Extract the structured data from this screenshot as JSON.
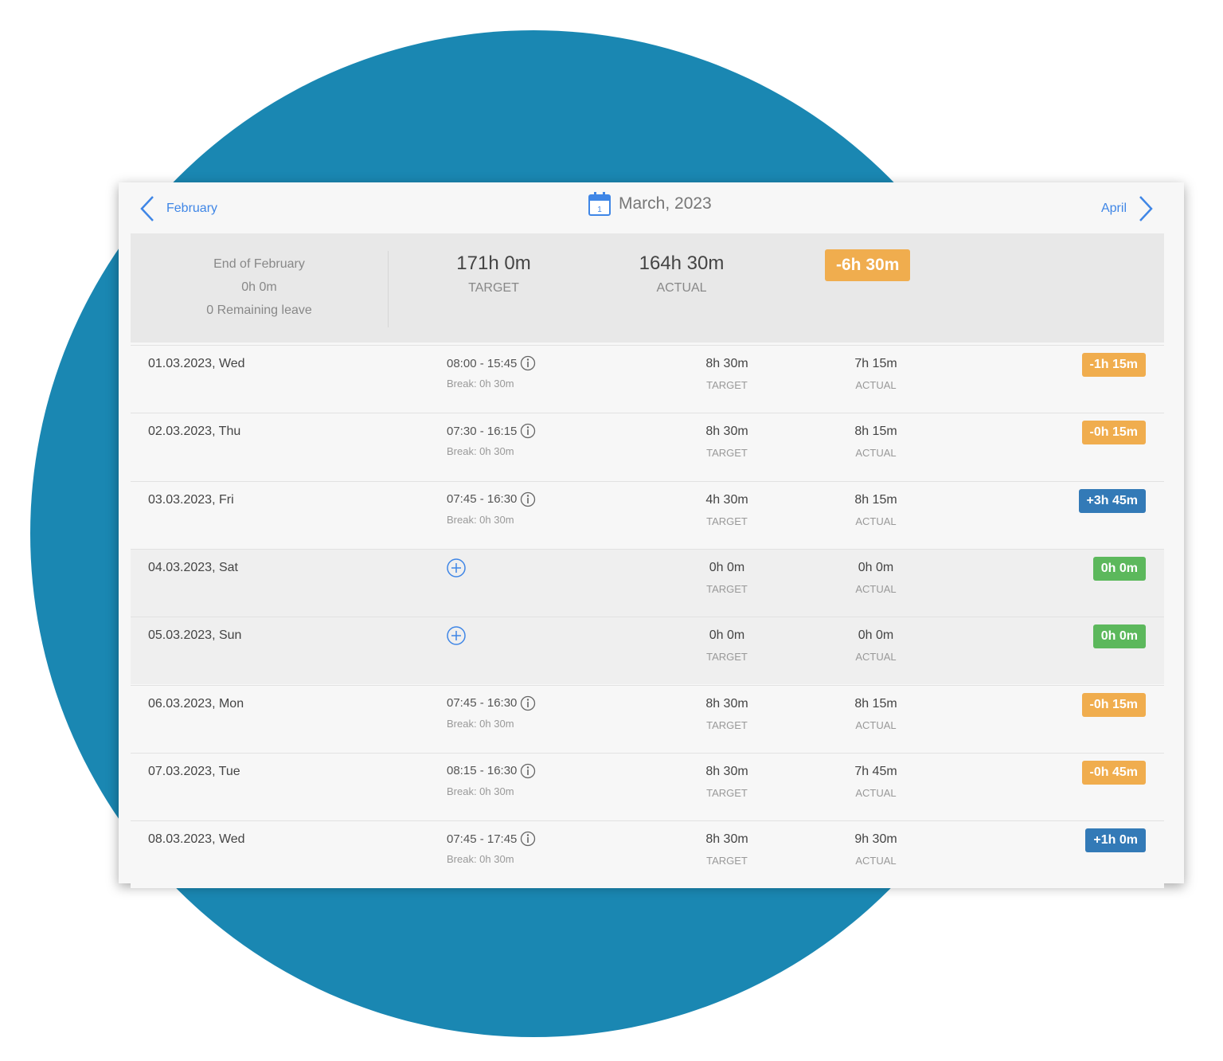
{
  "nav": {
    "prev_label": "February",
    "next_label": "April",
    "title": "March, 2023",
    "calendar_day": "1"
  },
  "summary": {
    "prev_title": "End of February",
    "prev_balance": "0h 0m",
    "remaining_leave": "0 Remaining leave",
    "target": "171h 0m",
    "target_label": "TARGET",
    "actual": "164h 30m",
    "actual_label": "ACTUAL",
    "difference": "-6h 30m",
    "difference_color": "#f0ad4e"
  },
  "colors": {
    "negative": "#f0ad4e",
    "positive": "#337ab7",
    "zero": "#5cb85c",
    "accent": "#3f86e6",
    "background_circle": "#1a87b2"
  },
  "rows": [
    {
      "date": "01.03.2023, Wed",
      "time": "08:00 - 15:45",
      "break": "Break: 0h 30m",
      "target": "8h 30m",
      "target_label": "TARGET",
      "actual": "7h 15m",
      "actual_label": "ACTUAL",
      "diff": "-1h 15m",
      "status": "negative"
    },
    {
      "date": "02.03.2023, Thu",
      "time": "07:30 - 16:15",
      "break": "Break: 0h 30m",
      "target": "8h 30m",
      "target_label": "TARGET",
      "actual": "8h 15m",
      "actual_label": "ACTUAL",
      "diff": "-0h 15m",
      "status": "negative"
    },
    {
      "date": "03.03.2023, Fri",
      "time": "07:45 - 16:30",
      "break": "Break: 0h 30m",
      "target": "4h 30m",
      "target_label": "TARGET",
      "actual": "8h 15m",
      "actual_label": "ACTUAL",
      "diff": "+3h 45m",
      "status": "positive"
    },
    {
      "date": "04.03.2023, Sat",
      "time": null,
      "break": null,
      "target": "0h 0m",
      "target_label": "TARGET",
      "actual": "0h 0m",
      "actual_label": "ACTUAL",
      "diff": "0h 0m",
      "status": "zero"
    },
    {
      "date": "05.03.2023, Sun",
      "time": null,
      "break": null,
      "target": "0h 0m",
      "target_label": "TARGET",
      "actual": "0h 0m",
      "actual_label": "ACTUAL",
      "diff": "0h 0m",
      "status": "zero"
    },
    {
      "date": "06.03.2023, Mon",
      "time": "07:45 - 16:30",
      "break": "Break: 0h 30m",
      "target": "8h 30m",
      "target_label": "TARGET",
      "actual": "8h 15m",
      "actual_label": "ACTUAL",
      "diff": "-0h 15m",
      "status": "negative"
    },
    {
      "date": "07.03.2023, Tue",
      "time": "08:15 - 16:30",
      "break": "Break: 0h 30m",
      "target": "8h 30m",
      "target_label": "TARGET",
      "actual": "7h 45m",
      "actual_label": "ACTUAL",
      "diff": "-0h 45m",
      "status": "negative"
    },
    {
      "date": "08.03.2023, Wed",
      "time": "07:45 - 17:45",
      "break": "Break: 0h 30m",
      "target": "8h 30m",
      "target_label": "TARGET",
      "actual": "9h 30m",
      "actual_label": "ACTUAL",
      "diff": "+1h 0m",
      "status": "positive"
    }
  ]
}
